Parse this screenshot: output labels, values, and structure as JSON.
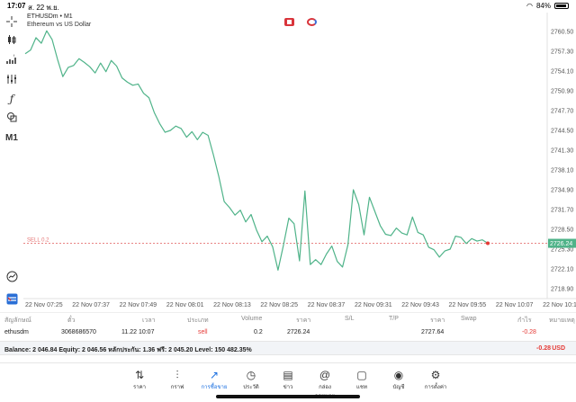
{
  "status": {
    "time": "17:07",
    "date": "ส. 22 พ.ย.",
    "battery": "84%",
    "battery_level": 0.84
  },
  "toolbar": {
    "crosshair_icon": "crosshair-icon",
    "chart_type_icon": "candles-icon",
    "indicators_icon": "indicator-icon",
    "objects_icon": "objects-icon",
    "function_icon": "function-icon",
    "shapes_icon": "shapes-icon",
    "timeframe": "M1",
    "clock_icon": "trade-clock-icon",
    "logo_icon": "app-logo-icon"
  },
  "chart_header": {
    "symbol": "ETHUSDm • M1",
    "description": "Ethereum vs US Dollar"
  },
  "chart_data": {
    "type": "line",
    "series": [
      {
        "values": [
          2756.9,
          2757.5,
          2759.5,
          2758.6,
          2760.6,
          2759.2,
          2756.0,
          2753.2,
          2754.7,
          2755.0,
          2756.1,
          2755.5,
          2754.8,
          2753.8,
          2755.4,
          2754.0,
          2755.8,
          2754.9,
          2753.0,
          2752.3,
          2751.8,
          2752.0,
          2750.5,
          2749.8,
          2747.4,
          2745.6,
          2744.2,
          2744.5,
          2745.2,
          2744.8,
          2743.4,
          2744.3,
          2743.0,
          2744.2,
          2743.7,
          2740.5,
          2737.0,
          2733.0,
          2732.0,
          2730.8,
          2731.6,
          2729.7,
          2730.9,
          2728.4,
          2726.5,
          2727.4,
          2725.7,
          2721.9,
          2725.9,
          2730.3,
          2729.4,
          2723.4,
          2734.7,
          2722.8,
          2723.6,
          2722.8,
          2724.5,
          2725.8,
          2723.3,
          2722.4,
          2726.0,
          2734.9,
          2732.5,
          2727.6,
          2733.7,
          2731.4,
          2729.1,
          2727.7,
          2727.5,
          2728.7,
          2727.9,
          2727.6,
          2730.5,
          2728.0,
          2727.6,
          2725.6,
          2725.2,
          2724.0,
          2725.0,
          2725.3,
          2727.4,
          2727.2,
          2726.2,
          2727.0,
          2726.6,
          2726.8,
          2726.24
        ]
      }
    ],
    "y_ticks": [
      "2760.50",
      "2757.30",
      "2754.10",
      "2750.90",
      "2747.70",
      "2744.50",
      "2741.30",
      "2738.10",
      "2734.90",
      "2731.70",
      "2728.50",
      "2725.30",
      "2722.10",
      "2718.90"
    ],
    "y_tick_values": [
      2760.5,
      2757.3,
      2754.1,
      2750.9,
      2747.7,
      2744.5,
      2741.3,
      2738.1,
      2734.9,
      2731.7,
      2728.5,
      2725.3,
      2722.1,
      2718.9
    ],
    "x_ticks": [
      "22 Nov 07:25",
      "22 Nov 07:37",
      "22 Nov 07:49",
      "22 Nov 08:01",
      "22 Nov 08:13",
      "22 Nov 08:25",
      "22 Nov 08:37",
      "22 Nov 09:31",
      "22 Nov 09:43",
      "22 Nov 09:55",
      "22 Nov 10:07",
      "22 Nov 10:19"
    ],
    "current_price": "2726.24",
    "current_price_value": 2726.24,
    "sell_line_label": "SELL 0.2",
    "sell_line_value": 2726.24,
    "ylim": [
      2717.3,
      2762.1
    ],
    "line_color": "#4fb389",
    "price_label_color": "#4fb389",
    "sell_line_color": "#e57373"
  },
  "positions": {
    "headers": [
      "สัญลักษณ์",
      "ตั๋ว",
      "เวลา",
      "ประเภท",
      "Volume",
      "ราคา",
      "S/L",
      "T/P",
      "ราคา",
      "Swap",
      "กำไร",
      "หมายเหตุ"
    ],
    "row": {
      "symbol": "ethusdm",
      "ticket": "3068686570",
      "time": "11.22 10:07",
      "type": "sell",
      "volume": "0.2",
      "open_price": "2726.24",
      "current_price": "2727.64",
      "profit": "-0.28"
    }
  },
  "balance": {
    "text": "Balance: 2 046.84 Equity: 2 046.56 หลักประกัน: 1.36 ฟรี: 2 045.20 Level: 150 482.35%",
    "total": "-0.28",
    "currency": "USD"
  },
  "nav": [
    {
      "label": "ราคา",
      "icon": "quotes-icon",
      "glyph": "⇅"
    },
    {
      "label": "กราฟ",
      "icon": "chart-icon",
      "glyph": "⫶"
    },
    {
      "label": "การซื้อขาย",
      "icon": "trade-icon",
      "glyph": "↗",
      "active": true
    },
    {
      "label": "ประวัติ",
      "icon": "history-icon",
      "glyph": "◷"
    },
    {
      "label": "ข่าว",
      "icon": "news-icon",
      "glyph": "▤"
    },
    {
      "label": "กล่องจดหมาย",
      "icon": "mailbox-icon",
      "glyph": "@"
    },
    {
      "label": "แชท",
      "icon": "chat-icon",
      "glyph": "▢"
    },
    {
      "label": "บัญชี",
      "icon": "account-icon",
      "glyph": "◉"
    },
    {
      "label": "การตั้งค่า",
      "icon": "settings-icon",
      "glyph": "⚙"
    }
  ]
}
